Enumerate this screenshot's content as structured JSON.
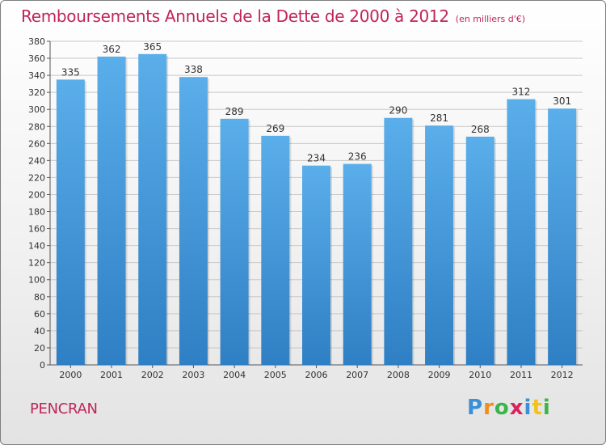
{
  "header": {
    "title": "Remboursements Annuels de la Dette de 2000 à 2012",
    "subtitle": "(en milliers d'€)"
  },
  "footer": {
    "commune": "PENCRAN",
    "logo_text": "Proxiti",
    "logo_letters": [
      {
        "ch": "P",
        "color": "#3b8fd6"
      },
      {
        "ch": "r",
        "color": "#f28c1b"
      },
      {
        "ch": "o",
        "color": "#3bb54a"
      },
      {
        "ch": "x",
        "color": "#d9245e"
      },
      {
        "ch": "i",
        "color": "#3b8fd6"
      },
      {
        "ch": "t",
        "color": "#f2c21b"
      },
      {
        "ch": "i",
        "color": "#3bb54a"
      }
    ]
  },
  "colors": {
    "bar_top": "#5aaeea",
    "bar_bottom": "#2f7fc4",
    "accent": "#c0245a",
    "grid": "#c8c8c8"
  },
  "chart_data": {
    "type": "bar",
    "title": "Remboursements Annuels de la Dette de 2000 à 2012",
    "subtitle": "(en milliers d'€)",
    "categories": [
      "2000",
      "2001",
      "2002",
      "2003",
      "2004",
      "2005",
      "2006",
      "2007",
      "2008",
      "2009",
      "2010",
      "2011",
      "2012"
    ],
    "values": [
      335,
      362,
      365,
      338,
      289,
      269,
      234,
      236,
      290,
      281,
      268,
      312,
      301
    ],
    "ylim": [
      0,
      380
    ],
    "yticks": [
      0,
      20,
      40,
      60,
      80,
      100,
      120,
      140,
      160,
      180,
      200,
      220,
      240,
      260,
      280,
      300,
      320,
      340,
      360,
      380
    ],
    "grid": true,
    "xlabel": "",
    "ylabel": ""
  }
}
